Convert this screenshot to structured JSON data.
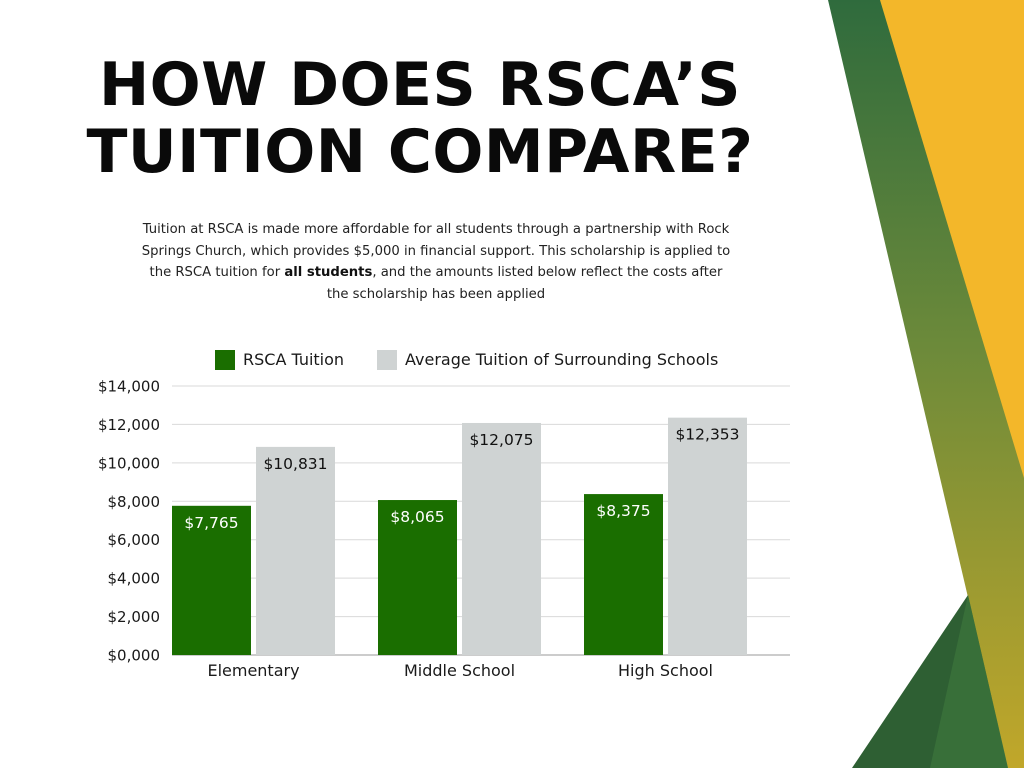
{
  "heading": {
    "line1": "HOW DOES RSCA’S",
    "line2": "TUITION COMPARE?"
  },
  "description": {
    "part1": "Tuition at RSCA is made more affordable for all students through a partnership with Rock Springs Church, which provides $5,000 in financial support. This scholarship is applied to the RSCA tuition for ",
    "bold": "all students",
    "part2": ", and the amounts listed below reflect the costs after the scholarship has been applied"
  },
  "colors": {
    "rsca": "#1a6e00",
    "average": "#cfd3d3",
    "deco_yellow": "#f3b72a",
    "deco_green": "#2e6b3c",
    "deco_olive": "#8d9a3a"
  },
  "chart_data": {
    "type": "bar",
    "categories": [
      "Elementary",
      "Middle School",
      "High School"
    ],
    "series": [
      {
        "name": "RSCA Tuition",
        "values": [
          7765,
          8065,
          8375
        ],
        "labels": [
          "$7,765",
          "$8,065",
          "$8,375"
        ],
        "color": "#1a6e00"
      },
      {
        "name": "Average Tuition of Surrounding Schools",
        "values": [
          10831,
          12075,
          12353
        ],
        "labels": [
          "$10,831",
          "$12,075",
          "$12,353"
        ],
        "color": "#cfd3d3"
      }
    ],
    "ylim": [
      0,
      14000
    ],
    "yticks": [
      0,
      2000,
      4000,
      6000,
      8000,
      10000,
      12000,
      14000
    ],
    "ytick_labels": [
      "$0,000",
      "$2,000",
      "$4,000",
      "$6,000",
      "$8,000",
      "$10,000",
      "$12,000",
      "$14,000"
    ],
    "grid": true,
    "legend_position": "top"
  }
}
